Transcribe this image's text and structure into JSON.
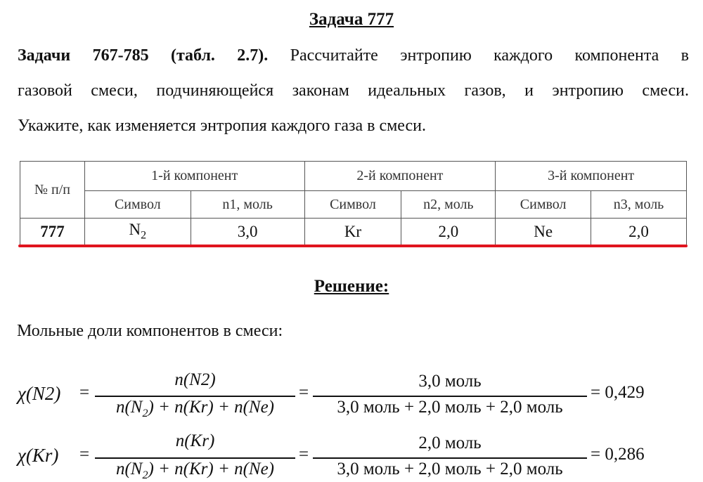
{
  "title": "Задача 777",
  "problem": {
    "lead": "Задачи 767-785 (табл. 2.7).",
    "line1": "Рассчитайте энтропию каждого компонента в",
    "line2": "газовой смеси, подчиняющейся законам идеальных газов, и энтропию смеси.",
    "line3": "Укажите, как изменяется энтропия каждого газа в смеси."
  },
  "table": {
    "num_header": "№ п/п",
    "groups": [
      "1-й компонент",
      "2-й компонент",
      "3-й компонент"
    ],
    "sub": [
      "Символ",
      "n1, моль",
      "Символ",
      "n2, моль",
      "Символ",
      "n3, моль"
    ],
    "row": {
      "num": "777",
      "cells": [
        "N2",
        "3,0",
        "Kr",
        "2,0",
        "Ne",
        "2,0"
      ]
    }
  },
  "solution_title": "Решение:",
  "intro": "Мольные доли компонентов в смеси:",
  "formulas": [
    {
      "lhs": "χ(N2)",
      "num1": "n(N2)",
      "den1": "n(N2) + n(Kr) + n(Ne)",
      "num2": "3,0 моль",
      "den2": "3,0 моль + 2,0 моль + 2,0 моль",
      "result": "= 0,429"
    },
    {
      "lhs": "χ(Kr)",
      "num1": "n(Kr)",
      "den1": "n(N2) + n(Kr) + n(Ne)",
      "num2": "2,0 моль",
      "den2": "3,0 моль + 2,0 моль + 2,0 моль",
      "result": "= 0,286"
    }
  ],
  "colors": {
    "underline_accent": "#e0141e"
  }
}
